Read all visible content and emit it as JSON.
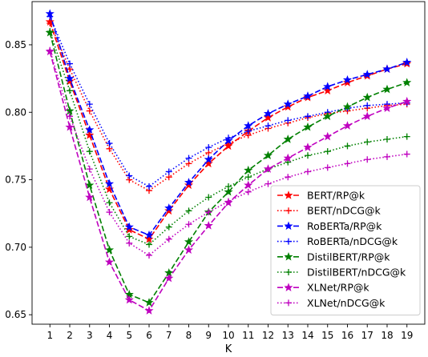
{
  "chart_data": {
    "type": "line",
    "title": "",
    "xlabel": "K",
    "ylabel": "",
    "x": [
      1,
      2,
      3,
      4,
      5,
      6,
      7,
      8,
      9,
      10,
      11,
      12,
      13,
      14,
      15,
      16,
      17,
      18,
      19
    ],
    "xlim": [
      0.1,
      19.9
    ],
    "ylim": [
      0.643,
      0.882
    ],
    "yticks": [
      0.65,
      0.7,
      0.75,
      0.8,
      0.85
    ],
    "ytick_labels": [
      "0.65",
      "0.70",
      "0.75",
      "0.80",
      "0.85"
    ],
    "grid": false,
    "legend_position": "lower-right",
    "series": [
      {
        "name": "BERT/RP@k",
        "color": "#ff0000",
        "linestyle": "dashed",
        "marker": "star",
        "values": [
          0.867,
          0.823,
          0.783,
          0.743,
          0.713,
          0.706,
          0.727,
          0.746,
          0.762,
          0.775,
          0.786,
          0.796,
          0.804,
          0.811,
          0.816,
          0.822,
          0.827,
          0.832,
          0.836
        ]
      },
      {
        "name": "BERT/nDCG@k",
        "color": "#ff0000",
        "linestyle": "dotted",
        "marker": "plus",
        "values": [
          0.866,
          0.832,
          0.801,
          0.773,
          0.75,
          0.742,
          0.752,
          0.762,
          0.77,
          0.777,
          0.783,
          0.788,
          0.792,
          0.796,
          0.799,
          0.801,
          0.803,
          0.805,
          0.806
        ]
      },
      {
        "name": "RoBERTa/RP@k",
        "color": "#0000ff",
        "linestyle": "dashed",
        "marker": "star",
        "values": [
          0.873,
          0.825,
          0.787,
          0.747,
          0.715,
          0.709,
          0.729,
          0.748,
          0.765,
          0.779,
          0.79,
          0.799,
          0.806,
          0.812,
          0.819,
          0.824,
          0.828,
          0.832,
          0.837
        ]
      },
      {
        "name": "RoBERTa/nDCG@k",
        "color": "#0000ff",
        "linestyle": "dotted",
        "marker": "plus",
        "values": [
          0.871,
          0.836,
          0.806,
          0.777,
          0.753,
          0.745,
          0.756,
          0.766,
          0.774,
          0.781,
          0.786,
          0.79,
          0.794,
          0.797,
          0.8,
          0.803,
          0.805,
          0.806,
          0.807
        ]
      },
      {
        "name": "DistilBERT/RP@k",
        "color": "#008000",
        "linestyle": "dashed",
        "marker": "star",
        "values": [
          0.859,
          0.801,
          0.746,
          0.698,
          0.665,
          0.659,
          0.681,
          0.704,
          0.726,
          0.741,
          0.757,
          0.768,
          0.78,
          0.789,
          0.797,
          0.804,
          0.811,
          0.817,
          0.822
        ]
      },
      {
        "name": "DistilBERT/nDCG@k",
        "color": "#008000",
        "linestyle": "dotted",
        "marker": "plus",
        "values": [
          0.86,
          0.816,
          0.771,
          0.733,
          0.708,
          0.702,
          0.715,
          0.727,
          0.737,
          0.745,
          0.752,
          0.758,
          0.763,
          0.768,
          0.771,
          0.775,
          0.778,
          0.78,
          0.782
        ]
      },
      {
        "name": "XLNet/RP@k",
        "color": "#bf00bf",
        "linestyle": "dashed",
        "marker": "star",
        "values": [
          0.845,
          0.789,
          0.737,
          0.689,
          0.661,
          0.653,
          0.677,
          0.698,
          0.716,
          0.733,
          0.746,
          0.758,
          0.766,
          0.774,
          0.782,
          0.79,
          0.797,
          0.803,
          0.808
        ]
      },
      {
        "name": "XLNet/nDCG@k",
        "color": "#bf00bf",
        "linestyle": "dotted",
        "marker": "plus",
        "values": [
          0.846,
          0.797,
          0.758,
          0.726,
          0.703,
          0.694,
          0.706,
          0.717,
          0.726,
          0.734,
          0.741,
          0.747,
          0.752,
          0.756,
          0.759,
          0.762,
          0.765,
          0.767,
          0.769
        ]
      }
    ]
  }
}
